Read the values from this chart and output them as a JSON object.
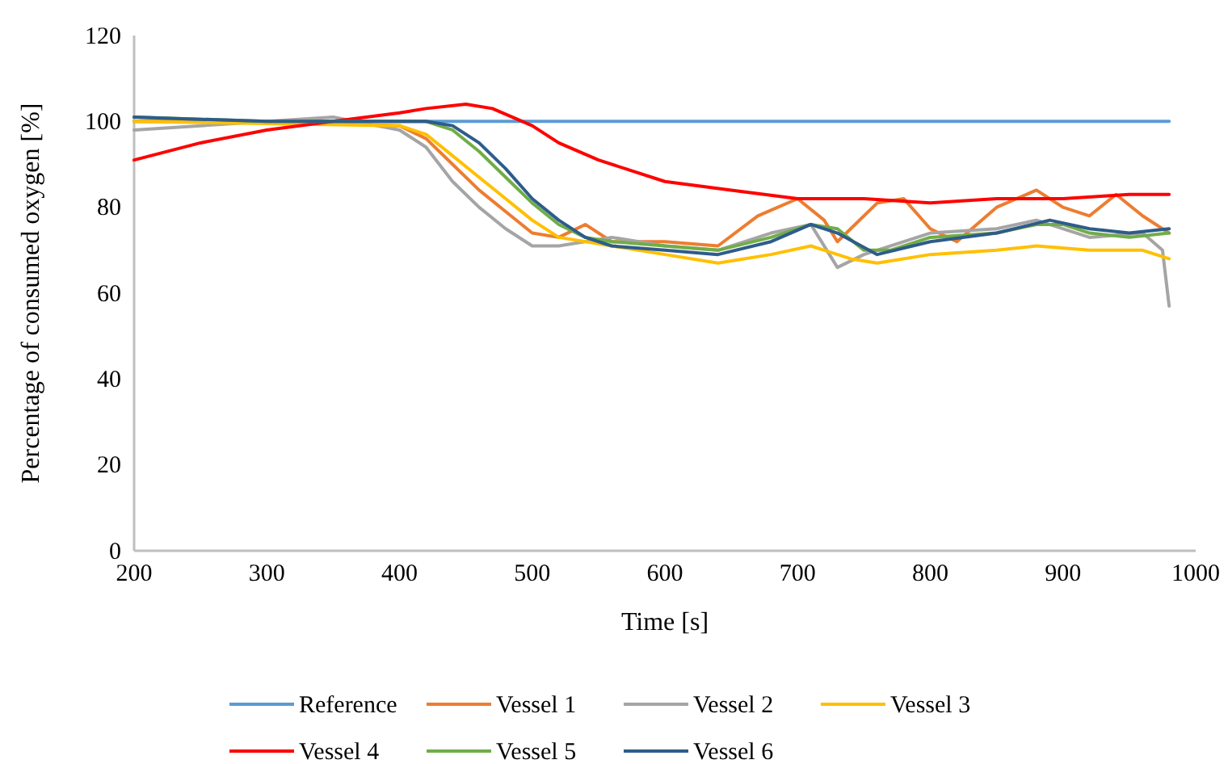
{
  "chart_data": {
    "type": "line",
    "xlabel": "Time [s]",
    "ylabel": "Percentage of consumed oxygen [%]",
    "xlim": [
      200,
      1000
    ],
    "xticks": [
      200,
      300,
      400,
      500,
      600,
      700,
      800,
      900,
      1000
    ],
    "ylim": [
      0,
      120
    ],
    "yticks": [
      0,
      20,
      40,
      60,
      80,
      100,
      120
    ],
    "grid": false,
    "legend": "bottom",
    "marker": "none",
    "line_style": "solid",
    "series": [
      {
        "name": "Reference",
        "color": "#5b9bd5",
        "x": [
          200,
          980
        ],
        "values": [
          100,
          100
        ]
      },
      {
        "name": "Vessel 1",
        "color": "#ed7d31",
        "x": [
          200,
          300,
          400,
          420,
          440,
          460,
          480,
          500,
          520,
          540,
          560,
          600,
          640,
          670,
          700,
          720,
          730,
          760,
          780,
          800,
          820,
          850,
          880,
          900,
          920,
          940,
          960,
          980
        ],
        "values": [
          100,
          100,
          99,
          96,
          90,
          84,
          79,
          74,
          73,
          76,
          72,
          72,
          71,
          78,
          82,
          77,
          72,
          81,
          82,
          75,
          72,
          80,
          84,
          80,
          78,
          83,
          78,
          74
        ]
      },
      {
        "name": "Vessel 2",
        "color": "#a5a5a5",
        "x": [
          200,
          350,
          400,
          420,
          440,
          460,
          480,
          500,
          520,
          560,
          600,
          640,
          680,
          710,
          730,
          750,
          800,
          850,
          880,
          920,
          960,
          975,
          980
        ],
        "values": [
          98,
          101,
          98,
          94,
          86,
          80,
          75,
          71,
          71,
          73,
          71,
          70,
          74,
          76,
          66,
          69,
          74,
          75,
          77,
          73,
          74,
          70,
          57
        ]
      },
      {
        "name": "Vessel 3",
        "color": "#ffc000",
        "x": [
          200,
          400,
          420,
          440,
          460,
          480,
          500,
          520,
          560,
          600,
          640,
          680,
          710,
          740,
          760,
          800,
          850,
          880,
          920,
          960,
          980
        ],
        "values": [
          100,
          99,
          97,
          92,
          87,
          82,
          77,
          73,
          71,
          69,
          67,
          69,
          71,
          68,
          67,
          69,
          70,
          71,
          70,
          70,
          68
        ]
      },
      {
        "name": "Vessel 4",
        "color": "#ff0000",
        "x": [
          200,
          250,
          300,
          350,
          400,
          420,
          450,
          470,
          500,
          520,
          550,
          600,
          650,
          700,
          750,
          800,
          850,
          900,
          950,
          980
        ],
        "values": [
          91,
          95,
          98,
          100,
          102,
          103,
          104,
          103,
          99,
          95,
          91,
          86,
          84,
          82,
          82,
          81,
          82,
          82,
          83,
          83
        ]
      },
      {
        "name": "Vessel 5",
        "color": "#70ad47",
        "x": [
          200,
          300,
          400,
          420,
          440,
          460,
          480,
          500,
          520,
          540,
          560,
          600,
          640,
          680,
          710,
          730,
          750,
          770,
          800,
          850,
          880,
          900,
          920,
          950,
          980
        ],
        "values": [
          101,
          100,
          100,
          100,
          98,
          93,
          87,
          81,
          76,
          73,
          72,
          71,
          70,
          73,
          76,
          75,
          70,
          70,
          73,
          74,
          76,
          76,
          74,
          73,
          74
        ]
      },
      {
        "name": "Vessel 6",
        "color": "#2e5c8a",
        "x": [
          200,
          300,
          400,
          420,
          440,
          460,
          480,
          500,
          520,
          540,
          560,
          600,
          640,
          680,
          710,
          730,
          760,
          800,
          850,
          890,
          920,
          950,
          980
        ],
        "values": [
          101,
          100,
          100,
          100,
          99,
          95,
          89,
          82,
          77,
          73,
          71,
          70,
          69,
          72,
          76,
          74,
          69,
          72,
          74,
          77,
          75,
          74,
          75
        ]
      }
    ]
  }
}
